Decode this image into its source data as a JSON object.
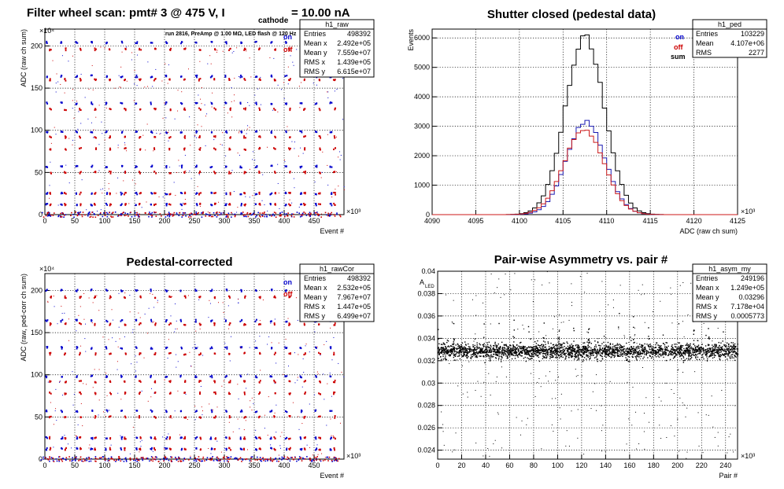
{
  "charts": {
    "p1": {
      "title_main": "Filter wheel scan: pmt#   3 @   475 V, I",
      "title_sub": "cathode",
      "title_tail": " = 10.00 nA",
      "exp_y": "×10⁴",
      "exp_x": "×10³",
      "annotation": "run 2816, PreAmp @ 1.00 MΩ, LED flash @  120 Hz",
      "legend_on": "on",
      "legend_off": "off",
      "stats": {
        "title": "h1_raw",
        "rows": [
          [
            "Entries",
            "498392"
          ],
          [
            "Mean x",
            "2.492e+05"
          ],
          [
            "Mean y",
            "7.559e+07"
          ],
          [
            "RMS x",
            "1.439e+05"
          ],
          [
            "RMS y",
            "6.615e+07"
          ]
        ]
      }
    },
    "p2": {
      "title": "Shutter closed (pedestal data)",
      "exp_x": "×10³",
      "legend": [
        "on",
        "off",
        "sum"
      ],
      "stats": {
        "title": "h1_ped",
        "rows": [
          [
            "Entries",
            "103229"
          ],
          [
            "Mean",
            "4.107e+06"
          ],
          [
            "RMS",
            "2277"
          ]
        ]
      }
    },
    "p3": {
      "title": "Pedestal-corrected",
      "exp_y": "×10⁴",
      "exp_x": "×10³",
      "legend_on": "on",
      "legend_off": "off",
      "stats": {
        "title": "h1_rawCor",
        "rows": [
          [
            "Entries",
            "498392"
          ],
          [
            "Mean x",
            "2.532e+05"
          ],
          [
            "Mean y",
            "7.967e+07"
          ],
          [
            "RMS x",
            "1.447e+05"
          ],
          [
            "RMS y",
            "6.499e+07"
          ]
        ]
      }
    },
    "p4": {
      "title": "Pair-wise Asymmetry vs. pair #",
      "ylabel_main": "A",
      "ylabel_sub": "LED",
      "exp_x": "×10³",
      "stats": {
        "title": "h1_asym_my",
        "rows": [
          [
            "Entries",
            "249196"
          ],
          [
            "Mean x",
            "1.249e+05"
          ],
          [
            "Mean y",
            "0.03296"
          ],
          [
            "RMS x",
            "7.178e+04"
          ],
          [
            "RMS y",
            "0.0005773"
          ]
        ]
      }
    }
  },
  "chart_data": [
    {
      "type": "scatter",
      "title": "Filter wheel scan: pmt#   3 @   475 V, I cathode = 10.00 nA",
      "xlabel": "Event #",
      "ylabel": "ADC (raw ch sum)",
      "xlim": [
        0,
        500
      ],
      "ylim": [
        0,
        220
      ],
      "x_ticks": [
        0,
        50,
        100,
        150,
        200,
        250,
        300,
        350,
        400,
        450
      ],
      "y_ticks": [
        0,
        50,
        100,
        150,
        200
      ],
      "grid": true,
      "legend_position": "top-right",
      "series": [
        {
          "name": "on",
          "color": "#0000cc",
          "y_levels": [
            0,
            12,
            25,
            57,
            98,
            132,
            164,
            204
          ]
        },
        {
          "name": "off",
          "color": "#cc0000",
          "y_levels": [
            0,
            12,
            25,
            50,
            78,
            92,
            125,
            160,
            196
          ]
        }
      ],
      "event_period": 25
    },
    {
      "type": "line",
      "title": "Shutter closed (pedestal data)",
      "xlabel": "ADC (raw ch sum)",
      "ylabel": "Events",
      "xlim": [
        4090,
        4125
      ],
      "ylim": [
        0,
        6300
      ],
      "x_ticks": [
        4090,
        4095,
        4100,
        4105,
        4110,
        4115,
        4120,
        4125
      ],
      "y_ticks": [
        0,
        1000,
        2000,
        3000,
        4000,
        5000,
        6000
      ],
      "grid": true,
      "legend_position": "top-right",
      "histogram_bin_width": 0.5,
      "series": [
        {
          "name": "sum",
          "color": "#000000",
          "mean": 4107.5,
          "sigma": 2.25,
          "peak": 6020
        },
        {
          "name": "on",
          "color": "#1a1ab3",
          "mean": 4107.6,
          "sigma": 2.2,
          "peak": 3150
        },
        {
          "name": "off",
          "color": "#cc1a1a",
          "mean": 4107.4,
          "sigma": 2.3,
          "peak": 2870
        }
      ]
    },
    {
      "type": "scatter",
      "title": "Pedestal-corrected",
      "xlabel": "Event #",
      "ylabel": "ADC (raw, ped-corr ch sum)",
      "xlim": [
        0,
        500
      ],
      "ylim": [
        0,
        220
      ],
      "x_ticks": [
        0,
        50,
        100,
        150,
        200,
        250,
        300,
        350,
        400,
        450
      ],
      "y_ticks": [
        0,
        50,
        100,
        150,
        200
      ],
      "grid": true,
      "legend_position": "top-right",
      "series": [
        {
          "name": "on",
          "color": "#0000cc",
          "y_levels": [
            0,
            12,
            25,
            57,
            98,
            132,
            164,
            200
          ]
        },
        {
          "name": "off",
          "color": "#cc0000",
          "y_levels": [
            0,
            12,
            25,
            50,
            78,
            92,
            125,
            160,
            192
          ]
        }
      ],
      "event_period": 25
    },
    {
      "type": "scatter",
      "title": "Pair-wise Asymmetry vs. pair #",
      "xlabel": "Pair #",
      "ylabel": "A LED",
      "xlim": [
        0,
        250
      ],
      "ylim": [
        0.0232,
        0.04
      ],
      "x_ticks": [
        0,
        20,
        40,
        60,
        80,
        100,
        120,
        140,
        160,
        180,
        200,
        220,
        240
      ],
      "y_ticks": [
        0.024,
        0.026,
        0.028,
        0.03,
        0.032,
        0.034,
        0.036,
        0.038,
        0.04
      ],
      "grid": true,
      "legend_position": "none",
      "band_center": 0.0329,
      "band_halfwidth": 0.0006
    }
  ]
}
